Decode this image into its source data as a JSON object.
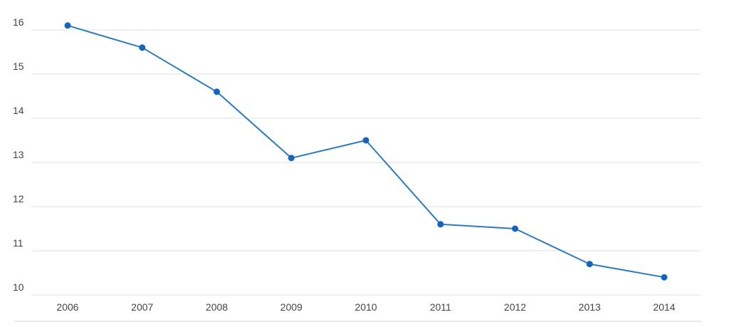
{
  "chart_data": {
    "type": "line",
    "title": "",
    "xlabel": "",
    "ylabel": "",
    "categories": [
      "2006",
      "2007",
      "2008",
      "2009",
      "2010",
      "2011",
      "2012",
      "2013",
      "2014"
    ],
    "series": [
      {
        "values": [
          16.1,
          15.6,
          14.6,
          13.1,
          13.5,
          11.6,
          11.5,
          10.7,
          10.4
        ]
      }
    ],
    "ylim": [
      10,
      16
    ],
    "y_ticks": [
      "10",
      "11",
      "12",
      "13",
      "14",
      "15",
      "16"
    ],
    "grid": true,
    "legend": "none",
    "colors": {
      "line": "#2b7bbd",
      "marker": "#1565c0",
      "grid": "#e0e0e0",
      "tick_text": "#444444"
    }
  }
}
